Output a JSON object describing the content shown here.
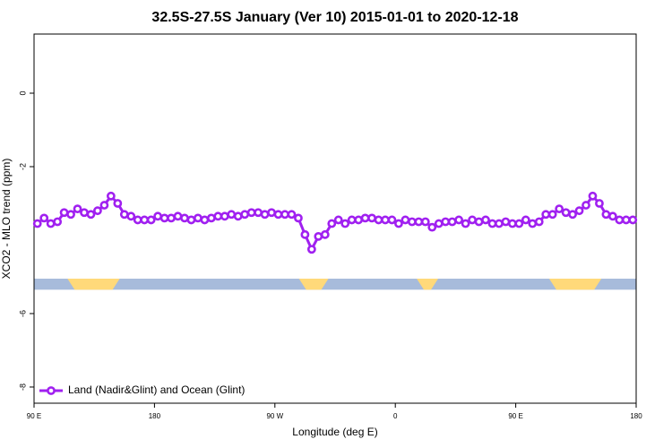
{
  "chart_data": {
    "type": "line",
    "title": "32.5S-27.5S January (Ver 10)   2015-01-01 to 2020-12-18",
    "x_label": "Longitude (deg E)",
    "y_label": "XCO2 - MLO trend (ppm)",
    "xlim": [
      90,
      540
    ],
    "ylim": [
      -8.44,
      1.61
    ],
    "xticks": [
      {
        "value": 90,
        "label": "90 E"
      },
      {
        "value": 180,
        "label": "180"
      },
      {
        "value": 270,
        "label": "90 W"
      },
      {
        "value": 360,
        "label": "0"
      },
      {
        "value": 450,
        "label": "90 E"
      },
      {
        "value": 540,
        "label": "180"
      }
    ],
    "yticks": [
      0,
      -2,
      -6,
      -8
    ],
    "legend_position": "bottom-left",
    "surface_band": {
      "ylim": [
        -5.35,
        -5.05
      ],
      "ocean_color": "#a7bbdb",
      "land_color": "#ffd97a",
      "land_ranges": [
        [
          115,
          154
        ],
        [
          288,
          310
        ],
        [
          376,
          392
        ],
        [
          475,
          514
        ]
      ]
    },
    "x": [
      92.5,
      97.5,
      102.5,
      107.5,
      112.5,
      117.5,
      122.5,
      127.5,
      132.5,
      137.5,
      142.5,
      147.5,
      152.5,
      157.5,
      162.5,
      167.5,
      172.5,
      177.5,
      182.5,
      187.5,
      192.5,
      197.5,
      202.5,
      207.5,
      212.5,
      217.5,
      222.5,
      227.5,
      232.5,
      237.5,
      242.5,
      247.5,
      252.5,
      257.5,
      262.5,
      267.5,
      272.5,
      277.5,
      282.5,
      287.5,
      292.5,
      297.5,
      302.5,
      307.5,
      312.5,
      317.5,
      322.5,
      327.5,
      332.5,
      337.5,
      342.5,
      347.5,
      352.5,
      357.5,
      362.5,
      367.5,
      372.5,
      377.5,
      382.5,
      387.5,
      392.5,
      397.5,
      402.5,
      407.5,
      412.5,
      417.5,
      422.5,
      427.5,
      432.5,
      437.5,
      442.5,
      447.5,
      452.5,
      457.5,
      462.5,
      467.5,
      472.5,
      477.5,
      482.5,
      487.5,
      492.5,
      497.5,
      502.5,
      507.5,
      512.5,
      517.5,
      522.5,
      527.5,
      532.5,
      537.5
    ],
    "series": [
      {
        "name": "Land (Nadir&Glint) and Ocean (Glint)",
        "color": "#a020f0",
        "values": [
          -3.55,
          -3.4,
          -3.55,
          -3.5,
          -3.25,
          -3.3,
          -3.15,
          -3.25,
          -3.3,
          -3.2,
          -3.05,
          -2.8,
          -3.0,
          -3.3,
          -3.35,
          -3.45,
          -3.45,
          -3.45,
          -3.35,
          -3.4,
          -3.4,
          -3.35,
          -3.4,
          -3.45,
          -3.4,
          -3.45,
          -3.4,
          -3.35,
          -3.35,
          -3.3,
          -3.35,
          -3.3,
          -3.25,
          -3.25,
          -3.3,
          -3.25,
          -3.3,
          -3.3,
          -3.3,
          -3.4,
          -3.85,
          -4.25,
          -3.9,
          -3.85,
          -3.55,
          -3.45,
          -3.55,
          -3.45,
          -3.45,
          -3.4,
          -3.4,
          -3.45,
          -3.45,
          -3.45,
          -3.55,
          -3.45,
          -3.5,
          -3.5,
          -3.5,
          -3.65,
          -3.55,
          -3.5,
          -3.5,
          -3.45,
          -3.55,
          -3.45,
          -3.5,
          -3.45,
          -3.55,
          -3.55,
          -3.5,
          -3.55,
          -3.55,
          -3.45,
          -3.55,
          -3.5,
          -3.3,
          -3.3,
          -3.15,
          -3.25,
          -3.3,
          -3.2,
          -3.05,
          -2.8,
          -3.0,
          -3.3,
          -3.35,
          -3.45,
          -3.45,
          -3.45
        ]
      }
    ]
  }
}
